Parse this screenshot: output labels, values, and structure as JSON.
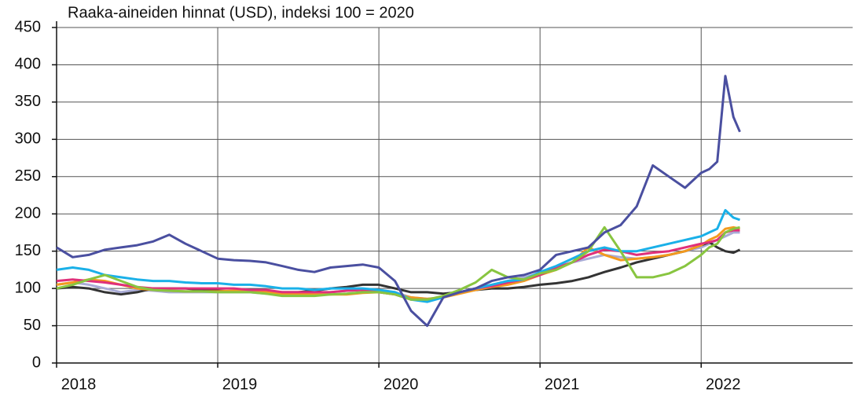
{
  "chart_data": {
    "type": "line",
    "title": "Raaka-aineiden hinnat (USD), indeksi 100 = 2020",
    "x": [
      2018.0,
      2018.1,
      2018.2,
      2018.3,
      2018.4,
      2018.5,
      2018.6,
      2018.7,
      2018.8,
      2018.9,
      2019.0,
      2019.1,
      2019.2,
      2019.3,
      2019.4,
      2019.5,
      2019.6,
      2019.7,
      2019.8,
      2019.9,
      2020.0,
      2020.1,
      2020.2,
      2020.3,
      2020.4,
      2020.5,
      2020.6,
      2020.7,
      2020.8,
      2020.9,
      2021.0,
      2021.1,
      2021.2,
      2021.3,
      2021.4,
      2021.5,
      2021.6,
      2021.7,
      2021.8,
      2021.9,
      2022.0,
      2022.05,
      2022.1,
      2022.15,
      2022.2,
      2022.24
    ],
    "xlim": [
      2018.0,
      2022.94
    ],
    "xticks": [
      2018,
      2019,
      2020,
      2021,
      2022
    ],
    "ylim": [
      0,
      450
    ],
    "yticks": [
      0,
      50,
      100,
      150,
      200,
      250,
      300,
      350,
      400,
      450
    ],
    "grid": true,
    "series": [
      {
        "color": "#a9abd6",
        "values": [
          105,
          108,
          105,
          100,
          95,
          98,
          97,
          95,
          95,
          95,
          95,
          95,
          95,
          93,
          92,
          92,
          93,
          95,
          97,
          98,
          98,
          95,
          88,
          86,
          88,
          95,
          100,
          105,
          110,
          115,
          120,
          128,
          135,
          140,
          145,
          142,
          140,
          142,
          145,
          150,
          155,
          160,
          165,
          170,
          175,
          175
        ]
      },
      {
        "color": "#333333",
        "values": [
          100,
          102,
          100,
          95,
          92,
          95,
          100,
          100,
          100,
          98,
          97,
          96,
          96,
          95,
          95,
          95,
          97,
          100,
          102,
          105,
          105,
          100,
          95,
          95,
          93,
          95,
          98,
          100,
          100,
          102,
          105,
          107,
          110,
          115,
          122,
          128,
          135,
          140,
          145,
          150,
          158,
          162,
          155,
          150,
          148,
          152
        ]
      },
      {
        "color": "#f39a1e",
        "values": [
          105,
          108,
          112,
          110,
          105,
          100,
          98,
          97,
          96,
          96,
          96,
          97,
          97,
          95,
          93,
          93,
          92,
          92,
          92,
          94,
          95,
          92,
          88,
          86,
          88,
          93,
          98,
          102,
          105,
          110,
          118,
          125,
          135,
          155,
          145,
          138,
          140,
          142,
          145,
          150,
          158,
          165,
          170,
          180,
          182,
          180
        ]
      },
      {
        "color": "#e0307a",
        "values": [
          110,
          112,
          110,
          108,
          105,
          102,
          100,
          100,
          100,
          100,
          100,
          100,
          98,
          98,
          95,
          95,
          95,
          95,
          97,
          98,
          95,
          92,
          85,
          85,
          88,
          95,
          100,
          103,
          108,
          112,
          118,
          128,
          135,
          145,
          152,
          150,
          145,
          148,
          150,
          155,
          160,
          162,
          165,
          175,
          178,
          178
        ]
      },
      {
        "color": "#1ab0e8",
        "values": [
          125,
          128,
          125,
          118,
          115,
          112,
          110,
          110,
          108,
          107,
          107,
          105,
          105,
          103,
          100,
          100,
          98,
          100,
          100,
          100,
          98,
          95,
          85,
          82,
          88,
          95,
          100,
          105,
          110,
          112,
          122,
          130,
          140,
          150,
          155,
          150,
          150,
          155,
          160,
          165,
          170,
          175,
          180,
          205,
          195,
          192
        ]
      },
      {
        "color": "#88c540",
        "values": [
          100,
          105,
          112,
          118,
          110,
          102,
          98,
          97,
          96,
          96,
          95,
          95,
          95,
          93,
          90,
          90,
          90,
          92,
          93,
          95,
          95,
          92,
          85,
          85,
          90,
          98,
          108,
          125,
          115,
          112,
          120,
          125,
          135,
          150,
          182,
          150,
          115,
          115,
          120,
          130,
          145,
          155,
          160,
          175,
          180,
          182
        ]
      },
      {
        "color": "#4a4fa0",
        "values": [
          155,
          142,
          145,
          152,
          155,
          158,
          163,
          172,
          160,
          150,
          140,
          138,
          137,
          135,
          130,
          125,
          122,
          128,
          130,
          132,
          128,
          110,
          70,
          50,
          88,
          95,
          100,
          110,
          115,
          118,
          125,
          145,
          150,
          155,
          175,
          185,
          210,
          265,
          250,
          235,
          255,
          260,
          270,
          385,
          330,
          310
        ]
      }
    ]
  }
}
